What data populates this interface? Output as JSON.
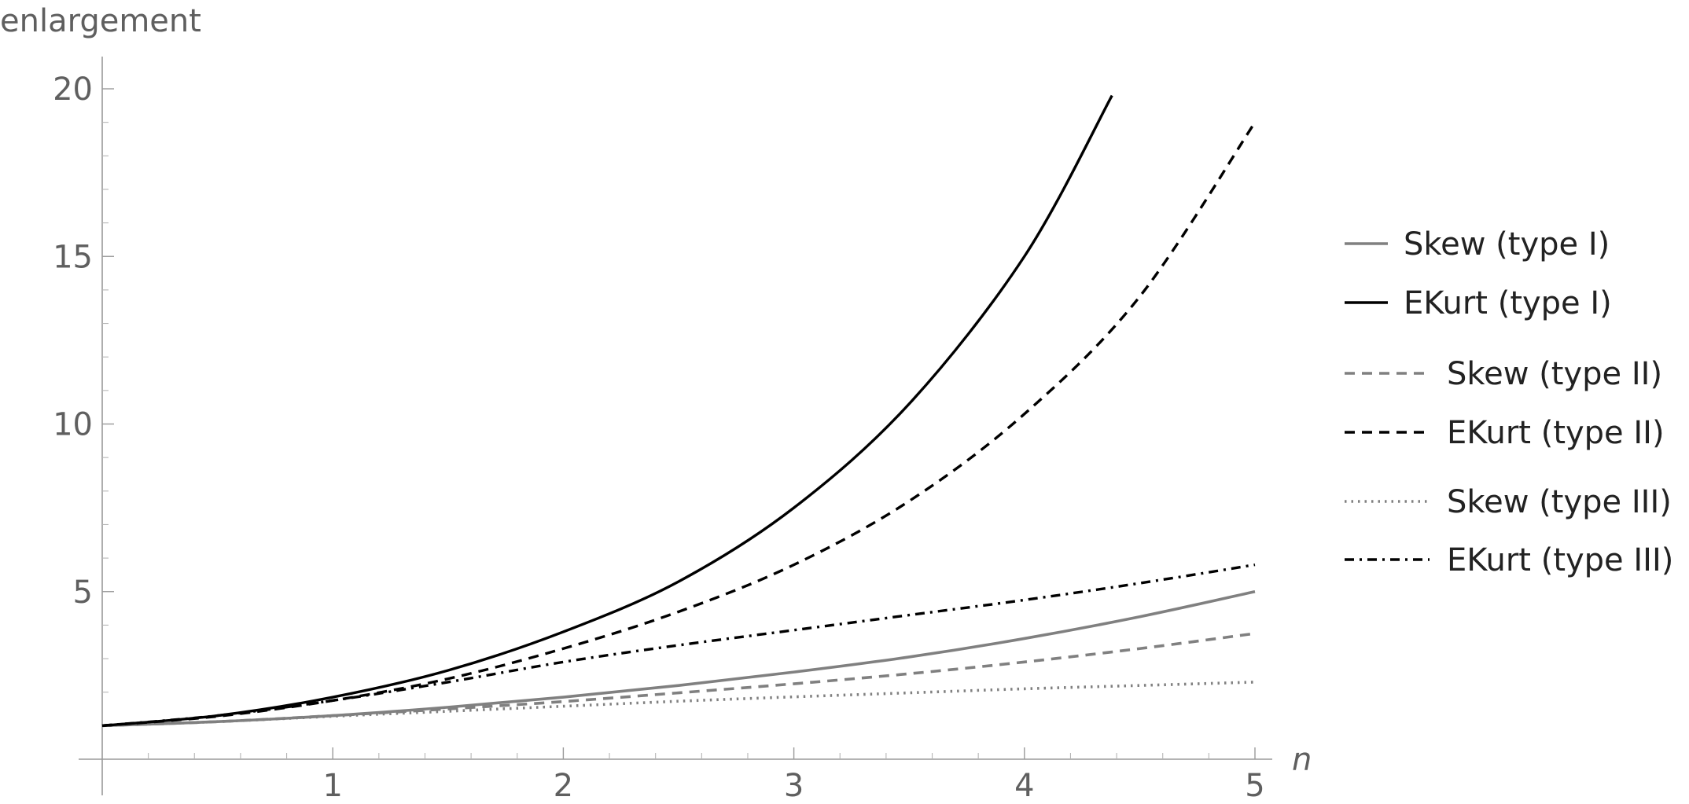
{
  "chart_data": {
    "type": "line",
    "title": "",
    "xlabel": "n",
    "ylabel": "enlargement",
    "xlim": [
      0,
      5
    ],
    "ylim": [
      0,
      20
    ],
    "x_ticks": [
      1,
      2,
      3,
      4,
      5
    ],
    "x_tick_labels": [
      "1",
      "2",
      "3",
      "4",
      "5"
    ],
    "y_ticks": [
      5,
      10,
      15,
      20
    ],
    "y_tick_labels": [
      "5",
      "10",
      "15",
      "20"
    ],
    "grid": false,
    "legend_position": "right",
    "series": [
      {
        "name": "Skew (type I)",
        "color": "#808080",
        "dash": "solid",
        "x": [
          0,
          0.5,
          1,
          1.5,
          2,
          2.5,
          3,
          3.5,
          4,
          4.5,
          5
        ],
        "y": [
          1.0,
          1.12,
          1.3,
          1.55,
          1.85,
          2.2,
          2.6,
          3.05,
          3.6,
          4.25,
          5.0
        ]
      },
      {
        "name": "EKurt (type I)",
        "color": "#000000",
        "dash": "solid",
        "x": [
          0,
          0.5,
          1,
          1.5,
          2,
          2.5,
          3,
          3.5,
          4,
          4.38
        ],
        "y": [
          1.0,
          1.3,
          1.85,
          2.65,
          3.8,
          5.3,
          7.5,
          10.6,
          15.0,
          19.8
        ]
      },
      {
        "name": "Skew (type II)",
        "color": "#808080",
        "dash": "dashed",
        "x": [
          0,
          0.5,
          1,
          1.5,
          2,
          2.5,
          3,
          3.5,
          4,
          4.5,
          5
        ],
        "y": [
          1.0,
          1.12,
          1.3,
          1.5,
          1.72,
          1.98,
          2.25,
          2.55,
          2.9,
          3.3,
          3.75
        ]
      },
      {
        "name": "EKurt (type II)",
        "color": "#000000",
        "dash": "dashed",
        "x": [
          0,
          0.5,
          1,
          1.5,
          2,
          2.5,
          3,
          3.5,
          4,
          4.5,
          5
        ],
        "y": [
          1.0,
          1.28,
          1.75,
          2.4,
          3.3,
          4.4,
          5.8,
          7.7,
          10.3,
          13.8,
          19.0
        ]
      },
      {
        "name": "Skew (type III)",
        "color": "#808080",
        "dash": "dotted",
        "x": [
          0,
          0.5,
          1,
          1.5,
          2,
          2.5,
          3,
          3.5,
          4,
          4.5,
          5
        ],
        "y": [
          1.0,
          1.12,
          1.28,
          1.43,
          1.58,
          1.73,
          1.86,
          1.98,
          2.1,
          2.2,
          2.3
        ]
      },
      {
        "name": "EKurt (type III)",
        "color": "#000000",
        "dash": "dashdot",
        "x": [
          0,
          0.5,
          1,
          1.5,
          2,
          2.5,
          3,
          3.5,
          4,
          4.5,
          5
        ],
        "y": [
          1.0,
          1.3,
          1.75,
          2.3,
          2.9,
          3.4,
          3.85,
          4.3,
          4.75,
          5.25,
          5.8
        ]
      }
    ]
  }
}
